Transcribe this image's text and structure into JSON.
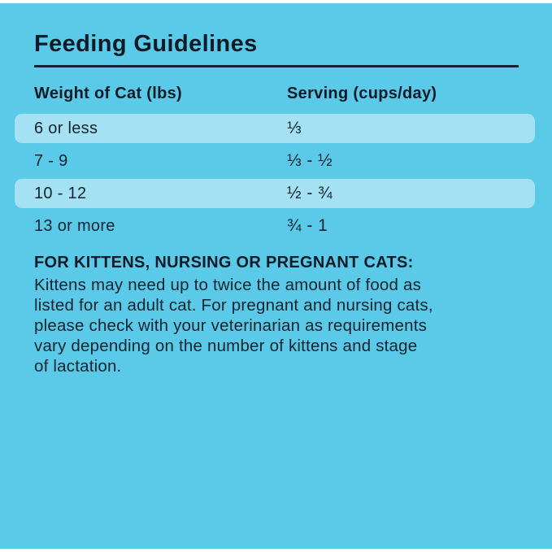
{
  "page": {
    "title": "Feeding Guidelines"
  },
  "table": {
    "headers": {
      "weight": "Weight of Cat (lbs)",
      "serving": "Serving (cups/day)"
    },
    "rows": [
      {
        "weight": "6 or less",
        "serving": "⅓",
        "highlighted": true
      },
      {
        "weight": "7 - 9",
        "serving": "⅓ - ½",
        "highlighted": false
      },
      {
        "weight": "10 - 12",
        "serving": "½ - ¾",
        "highlighted": true
      },
      {
        "weight": "13 or more",
        "serving": "¾ - 1",
        "highlighted": false
      }
    ]
  },
  "note": {
    "heading": "FOR KITTENS, NURSING OR PREGNANT CATS:",
    "lines": [
      "Kittens may need up to twice the amount of food as",
      "listed for an adult cat. For pregnant and nursing cats,",
      "please check with your veterinarian as requirements",
      "vary depending on the number of kittens and stage",
      "of lactation."
    ]
  },
  "colors": {
    "background": "#5BC9E8",
    "row_highlight": "#A4E1F2",
    "text": "#14242F",
    "text_strong": "#0C1B26",
    "rule": "#0F2537"
  }
}
